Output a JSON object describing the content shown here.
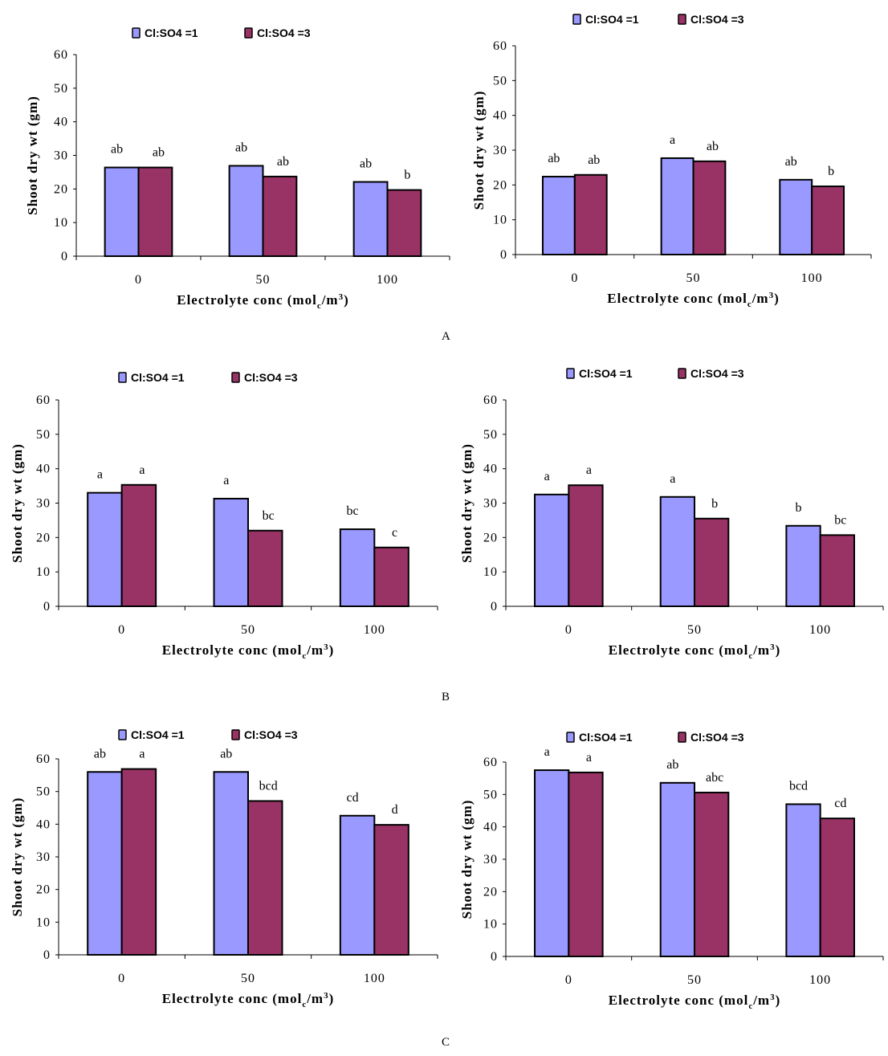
{
  "panels": [
    {
      "label": "A"
    },
    {
      "label": "B"
    },
    {
      "label": "C"
    }
  ],
  "colors": {
    "series1": "#9999FF",
    "series2": "#993366",
    "outline": "#000000"
  },
  "chart_data": [
    {
      "id": "A-left",
      "panel": "A",
      "type": "bar",
      "title": "",
      "xlabel_main": "Electrolyte conc (mol",
      "xlabel_sub": "c",
      "xlabel_tail": "/m",
      "xlabel_sup": "3",
      "xlabel_close": ")",
      "ylabel": "Shoot dry wt (gm)",
      "ylim": [
        0,
        60
      ],
      "yticks": [
        "0",
        "10",
        "20",
        "30",
        "40",
        "50",
        "60"
      ],
      "categories": [
        "0",
        "50",
        "100"
      ],
      "legend": "top",
      "series": [
        {
          "name": "Cl:SO4 =1",
          "values": [
            26.4,
            26.9,
            22.1
          ],
          "labels": [
            "ab",
            "ab",
            "ab"
          ]
        },
        {
          "name": "Cl:SO4 =3",
          "values": [
            26.4,
            23.7,
            19.7
          ],
          "labels": [
            "ab",
            "ab",
            "b"
          ]
        }
      ]
    },
    {
      "id": "A-right",
      "panel": "A",
      "type": "bar",
      "title": "",
      "xlabel_main": "Electrolyte conc (mol",
      "xlabel_sub": "c",
      "xlabel_tail": "/m",
      "xlabel_sup": "3",
      "xlabel_close": ")",
      "ylabel": "Shoot dry wt (gm)",
      "ylim": [
        0,
        60
      ],
      "yticks": [
        "0",
        "10",
        "20",
        "30",
        "40",
        "50",
        "60"
      ],
      "categories": [
        "0",
        "50",
        "100"
      ],
      "legend": "top",
      "series": [
        {
          "name": "Cl:SO4 =1",
          "values": [
            22.4,
            27.7,
            21.5
          ],
          "labels": [
            "ab",
            "a",
            "ab"
          ]
        },
        {
          "name": "Cl:SO4 =3",
          "values": [
            22.9,
            26.8,
            19.6
          ],
          "labels": [
            "ab",
            "ab",
            "b"
          ]
        }
      ]
    },
    {
      "id": "B-left",
      "panel": "B",
      "type": "bar",
      "title": "",
      "xlabel_main": "Electrolyte conc (mol",
      "xlabel_sub": "c",
      "xlabel_tail": "/m",
      "xlabel_sup": "3",
      "xlabel_close": ")",
      "ylabel": "Shoot dry wt (gm)",
      "ylim": [
        0,
        60
      ],
      "yticks": [
        "0",
        "10",
        "20",
        "30",
        "40",
        "50",
        "60"
      ],
      "categories": [
        "0",
        "50",
        "100"
      ],
      "legend": "top",
      "series": [
        {
          "name": "Cl:SO4 =1",
          "values": [
            33.0,
            31.3,
            22.4
          ],
          "labels": [
            "a",
            "a",
            "bc"
          ]
        },
        {
          "name": "Cl:SO4 =3",
          "values": [
            35.3,
            22.0,
            17.1
          ],
          "labels": [
            "a",
            "bc",
            "c"
          ]
        }
      ]
    },
    {
      "id": "B-right",
      "panel": "B",
      "type": "bar",
      "title": "",
      "xlabel_main": "Electrolyte conc (mol",
      "xlabel_sub": "c",
      "xlabel_tail": "/m",
      "xlabel_sup": "3",
      "xlabel_close": ")",
      "ylabel": "Shoot dry wt (gm)",
      "ylim": [
        0,
        60
      ],
      "yticks": [
        "0",
        "10",
        "20",
        "30",
        "40",
        "50",
        "60"
      ],
      "categories": [
        "0",
        "50",
        "100"
      ],
      "legend": "top",
      "series": [
        {
          "name": "Cl:SO4 =1",
          "values": [
            32.5,
            31.8,
            23.4
          ],
          "labels": [
            "a",
            "a",
            "b"
          ]
        },
        {
          "name": "Cl:SO4 =3",
          "values": [
            35.2,
            25.5,
            20.7
          ],
          "labels": [
            "a",
            "b",
            "bc"
          ]
        }
      ]
    },
    {
      "id": "C-left",
      "panel": "C",
      "type": "bar",
      "title": "",
      "xlabel_main": "Electrolyte conc (mol",
      "xlabel_sub": "c",
      "xlabel_tail": "/m",
      "xlabel_sup": "3",
      "xlabel_close": ")",
      "ylabel": "Shoot dry wt (gm)",
      "ylim": [
        0,
        60
      ],
      "yticks": [
        "0",
        "10",
        "20",
        "30",
        "40",
        "50",
        "60"
      ],
      "categories": [
        "0",
        "50",
        "100"
      ],
      "legend": "top",
      "series": [
        {
          "name": "Cl:SO4 =1",
          "values": [
            56.0,
            56.0,
            42.6
          ],
          "labels": [
            "ab",
            "ab",
            "cd"
          ]
        },
        {
          "name": "Cl:SO4 =3",
          "values": [
            56.9,
            47.1,
            39.8
          ],
          "labels": [
            "a",
            "bcd",
            "d"
          ]
        }
      ]
    },
    {
      "id": "C-right",
      "panel": "C",
      "type": "bar",
      "title": "",
      "xlabel_main": "Electrolyte conc (mol",
      "xlabel_sub": "c",
      "xlabel_tail": "/m",
      "xlabel_sup": "3",
      "xlabel_close": ")",
      "ylabel": "Shoot dry wt (gm)",
      "ylim": [
        0,
        60
      ],
      "yticks": [
        "0",
        "10",
        "20",
        "30",
        "40",
        "50",
        "60"
      ],
      "categories": [
        "0",
        "50",
        "100"
      ],
      "legend": "top",
      "series": [
        {
          "name": "Cl:SO4 =1",
          "values": [
            57.5,
            53.6,
            47.0
          ],
          "labels": [
            "a",
            "ab",
            "bcd"
          ]
        },
        {
          "name": "Cl:SO4 =3",
          "values": [
            56.8,
            50.6,
            42.6
          ],
          "labels": [
            "a",
            "abc",
            "cd"
          ]
        }
      ]
    }
  ]
}
